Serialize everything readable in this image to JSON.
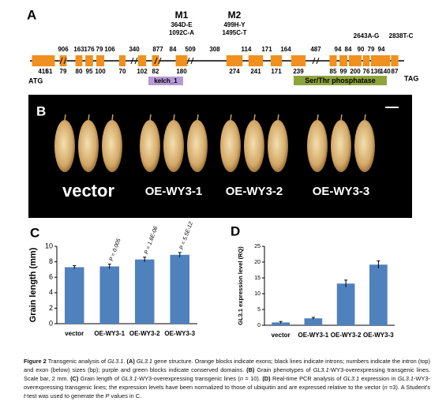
{
  "gene": {
    "label": "A",
    "mutations": [
      {
        "name": "M1",
        "changes": [
          "364D-E",
          "1092C-A"
        ]
      },
      {
        "name": "M2",
        "changes": [
          "499H-Y",
          "1495C-T"
        ]
      },
      {
        "changes": [
          "2643A-G"
        ]
      },
      {
        "changes": [
          "2838T-C"
        ]
      }
    ],
    "introns": [
      "906",
      "163",
      "176",
      "79",
      "106",
      "340",
      "877",
      "84",
      "509",
      "308",
      "114",
      "171",
      "164",
      "487",
      "94",
      "84",
      "90",
      "79",
      "94"
    ],
    "exons": [
      415,
      61,
      79,
      80,
      95,
      100,
      70,
      102,
      82,
      180,
      274,
      241,
      171,
      239,
      85,
      99,
      200,
      76,
      136,
      140,
      87
    ],
    "start": "ATG",
    "stop": "TAG",
    "domains": [
      "kelch_1",
      "Ser/Thr phosphatase"
    ]
  },
  "grains": {
    "label": "B",
    "lines": [
      "vector",
      "OE-WY3-1",
      "OE-WY3-2",
      "OE-WY3-3"
    ]
  },
  "chart_data": [
    {
      "type": "bar",
      "panel": "C",
      "ylabel": "Grain length (mm)",
      "categories": [
        "vector",
        "OE-WY3-1",
        "OE-WY3-2",
        "OE-WY3-3"
      ],
      "values": [
        7.3,
        7.4,
        8.3,
        8.9
      ],
      "errors": [
        0.2,
        0.3,
        0.3,
        0.3
      ],
      "annotations": [
        null,
        "P = 0.005",
        "P = 1.6E-06",
        "P = 5.5E-12"
      ],
      "color": "#4f81bd",
      "ylim": [
        0,
        10
      ],
      "yticks": [
        0,
        2,
        4,
        6,
        8,
        10
      ]
    },
    {
      "type": "bar",
      "panel": "D",
      "ylabel": "GL3.1 expression level (RQ)",
      "categories": [
        "vector",
        "OE-WY3-1",
        "OE-WY3-2",
        "OE-WY3-3"
      ],
      "values": [
        0.9,
        2.2,
        13.2,
        19.2
      ],
      "errors": [
        0.3,
        0.3,
        1.1,
        1.2
      ],
      "color": "#4f81bd",
      "ylim": [
        0,
        25
      ],
      "yticks": [
        0,
        5,
        10,
        15,
        20,
        25
      ]
    }
  ],
  "caption": [
    {
      "text": "Figure 2",
      "bold": true
    },
    {
      "text": " Transgenic analysis of "
    },
    {
      "text": "GL3.1",
      "italic": true
    },
    {
      "text": ". "
    },
    {
      "text": "(A)",
      "bold": true
    },
    {
      "text": " "
    },
    {
      "text": "GL3.1",
      "italic": true
    },
    {
      "text": " gene structure. Orange blocks indicate exons; black lines indicate introns; numbers indicate the intron (top) and exon (below) sizes (bp); purple and green blocks indicate conserved domains. "
    },
    {
      "text": "(B)",
      "bold": true
    },
    {
      "text": " Grain phenotypes of "
    },
    {
      "text": "GL3.1",
      "italic": true
    },
    {
      "text": "-WY3-overexpressing transgenic lines. Scale bar, 2 mm. "
    },
    {
      "text": "(C)",
      "bold": true
    },
    {
      "text": " Grain length of "
    },
    {
      "text": "GL3.1",
      "italic": true
    },
    {
      "text": "-WY3-overexpressing transgenic lines ("
    },
    {
      "text": "n",
      "italic": true
    },
    {
      "text": " = 10). "
    },
    {
      "text": "(D)",
      "bold": true
    },
    {
      "text": " Real-time PCR analysis of "
    },
    {
      "text": "GL3.1",
      "italic": true
    },
    {
      "text": " expression in "
    },
    {
      "text": "GL3.1",
      "italic": true
    },
    {
      "text": "-WY3-overexpressing transgenic lines; the expression levels have been normalized to those of ubiquitin and are expressed relative to the vector ("
    },
    {
      "text": "n",
      "italic": true
    },
    {
      "text": " =3). A Student's "
    },
    {
      "text": "t",
      "italic": true
    },
    {
      "text": "-test was used to generate the "
    },
    {
      "text": "P",
      "italic": true
    },
    {
      "text": " values in C."
    }
  ]
}
